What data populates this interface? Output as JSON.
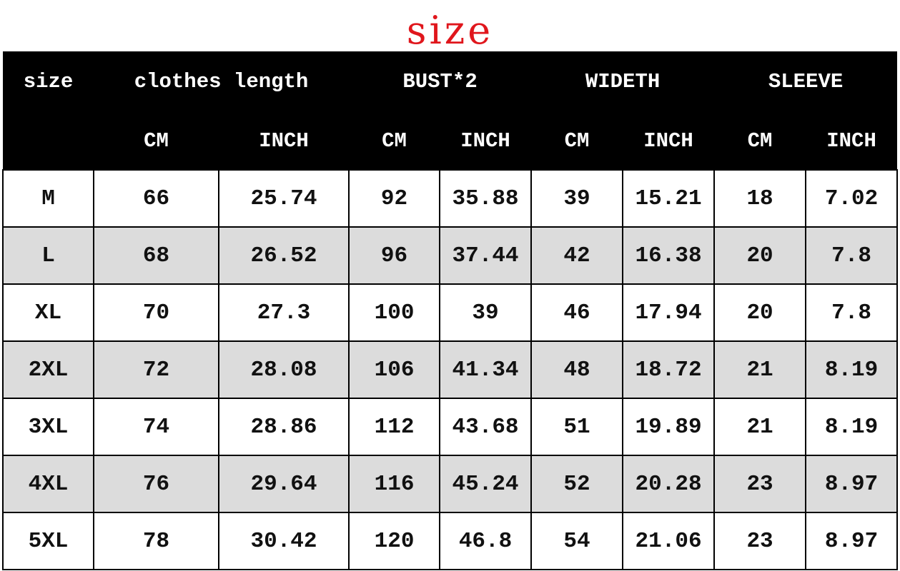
{
  "title": "size",
  "header": {
    "size": "size",
    "groups": [
      "clothes length",
      "BUST*2",
      "WIDETH",
      "SLEEVE"
    ],
    "units": [
      "CM",
      "INCH",
      "CM",
      "INCH",
      "CM",
      "INCH",
      "CM",
      "INCH"
    ]
  },
  "rows": [
    [
      "M",
      "66",
      "25.74",
      "92",
      "35.88",
      "39",
      "15.21",
      "18",
      "7.02"
    ],
    [
      "L",
      "68",
      "26.52",
      "96",
      "37.44",
      "42",
      "16.38",
      "20",
      "7.8"
    ],
    [
      "XL",
      "70",
      "27.3",
      "100",
      "39",
      "46",
      "17.94",
      "20",
      "7.8"
    ],
    [
      "2XL",
      "72",
      "28.08",
      "106",
      "41.34",
      "48",
      "18.72",
      "21",
      "8.19"
    ],
    [
      "3XL",
      "74",
      "28.86",
      "112",
      "43.68",
      "51",
      "19.89",
      "21",
      "8.19"
    ],
    [
      "4XL",
      "76",
      "29.64",
      "116",
      "45.24",
      "52",
      "20.28",
      "23",
      "8.97"
    ],
    [
      "5XL",
      "78",
      "30.42",
      "120",
      "46.8",
      "54",
      "21.06",
      "23",
      "8.97"
    ]
  ]
}
